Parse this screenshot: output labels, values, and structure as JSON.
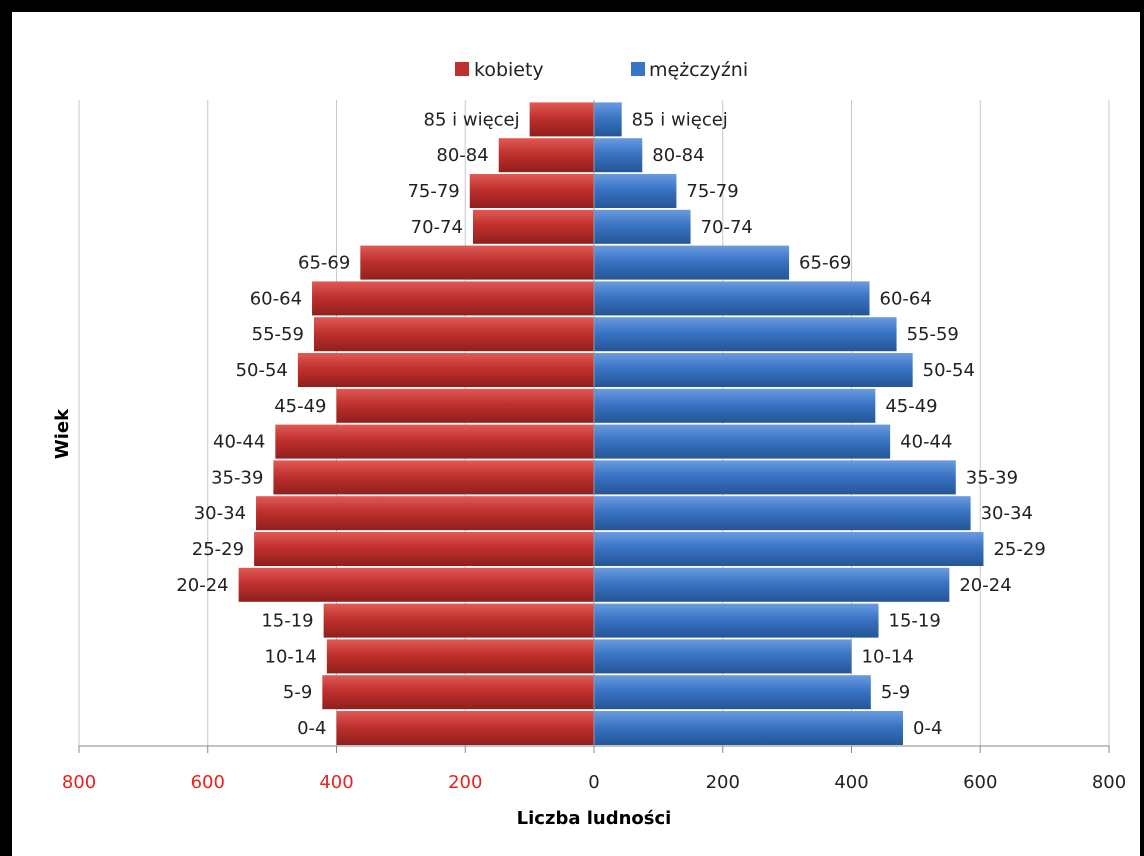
{
  "chart_data": {
    "type": "bar",
    "orientation": "horizontal",
    "title": "",
    "xlabel": "Liczba ludności",
    "ylabel": "Wiek",
    "xlim": [
      -800,
      800
    ],
    "x_tick_values": [
      -800,
      -600,
      -400,
      -200,
      0,
      200,
      400,
      600,
      800
    ],
    "x_tick_labels": [
      "800",
      "600",
      "400",
      "200",
      "0",
      "200",
      "400",
      "600",
      "800"
    ],
    "grid": "vertical",
    "legend_position": "top-center",
    "categories": [
      "0-4",
      "5-9",
      "10-14",
      "15-19",
      "20-24",
      "25-29",
      "30-34",
      "35-39",
      "40-44",
      "45-49",
      "50-54",
      "55-59",
      "60-64",
      "65-69",
      "70-74",
      "75-79",
      "80-84",
      "85 i więcej"
    ],
    "series": [
      {
        "name": "kobiety",
        "color": "#c0312e",
        "values": [
          400,
          422,
          415,
          420,
          552,
          528,
          525,
          498,
          495,
          400,
          460,
          435,
          438,
          363,
          188,
          193,
          148,
          100
        ]
      },
      {
        "name": "mężczyźni",
        "color": "#3a74c4",
        "values": [
          480,
          430,
          400,
          442,
          552,
          605,
          585,
          562,
          460,
          437,
          495,
          470,
          428,
          303,
          150,
          128,
          75,
          43
        ]
      }
    ],
    "tick_colors": {
      "negative": "#e8231f",
      "positive": "#222222"
    }
  }
}
